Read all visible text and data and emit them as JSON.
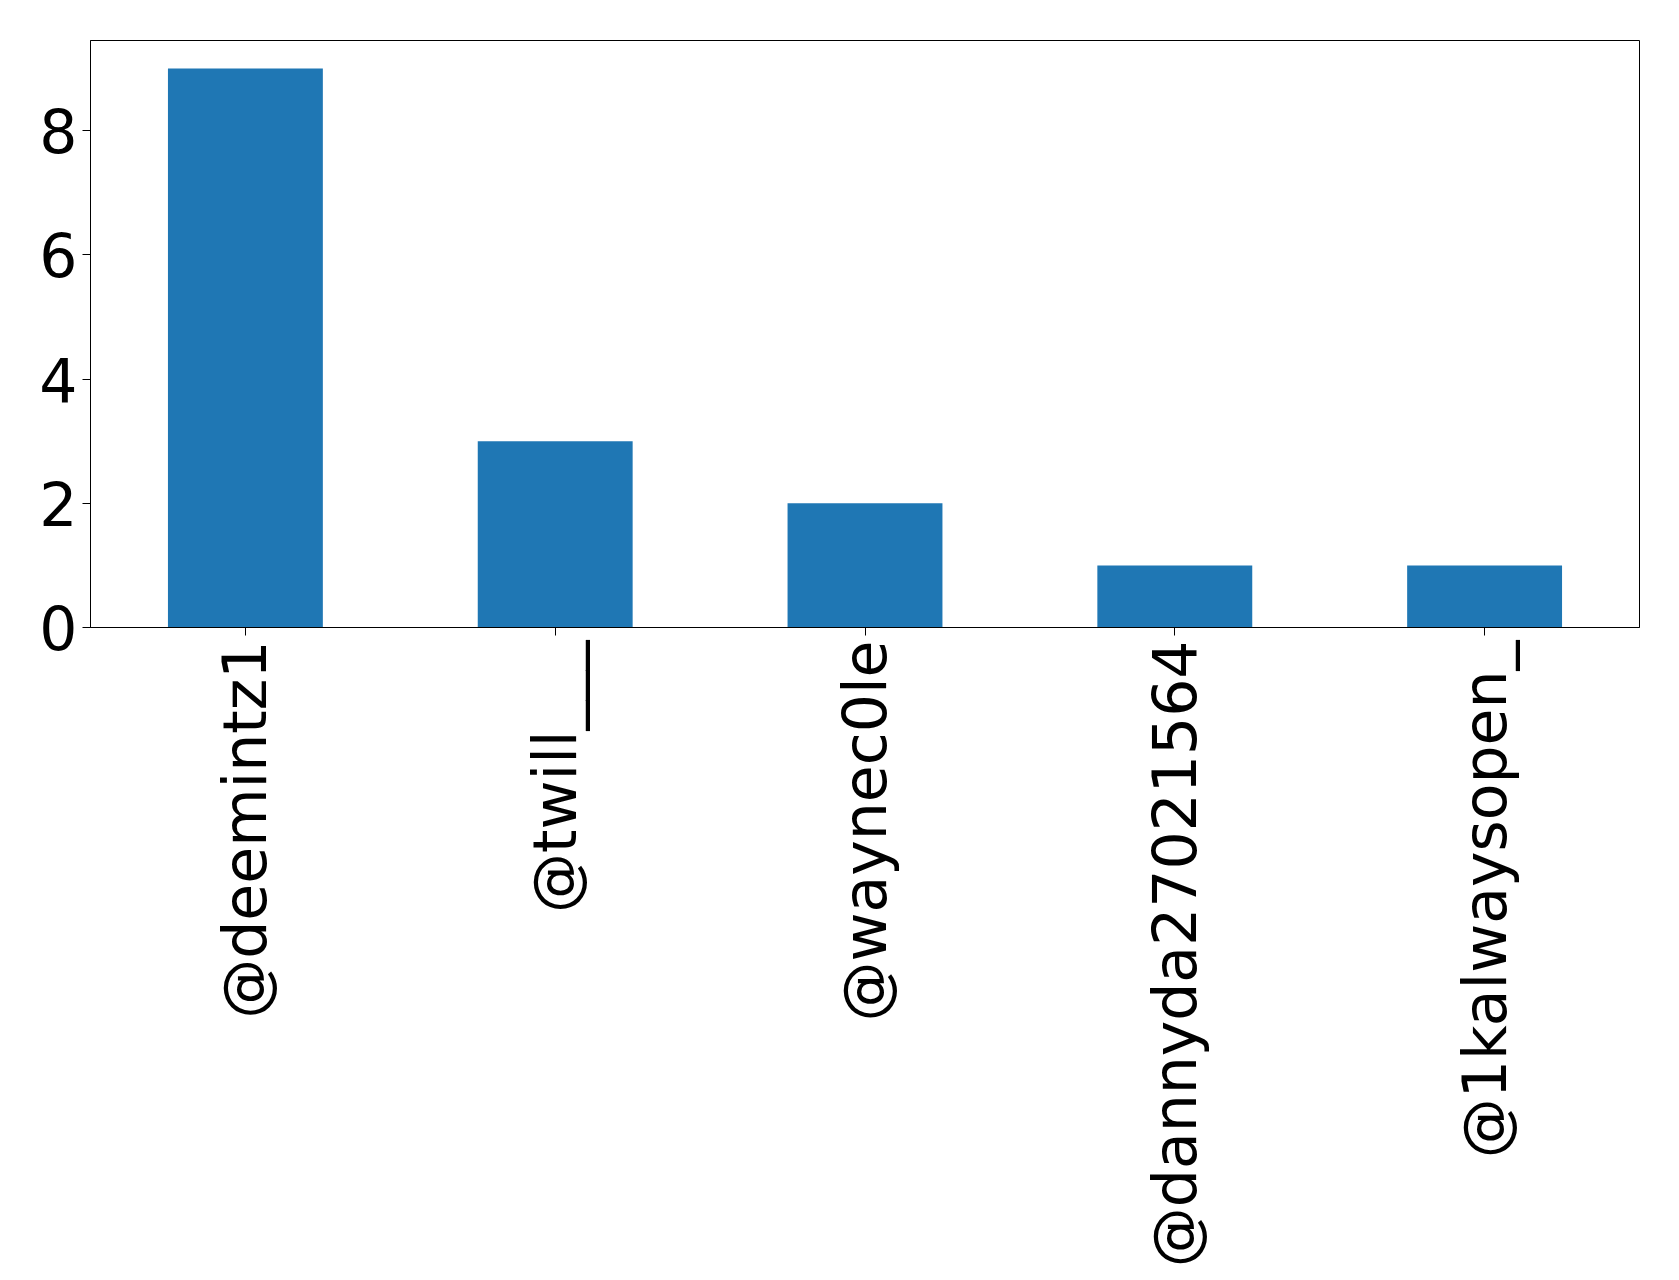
{
  "chart_data": {
    "type": "bar",
    "categories": [
      "@deemintz1",
      "@twill___",
      "@waynec0le",
      "@dannyda27021564",
      "@1kalwaysopen_"
    ],
    "values": [
      9,
      3,
      2,
      1,
      1
    ],
    "color": "#1f77b4",
    "ylim": [
      0,
      9.45
    ],
    "yticks": [
      0,
      2,
      4,
      6,
      8
    ],
    "grid": false
  }
}
